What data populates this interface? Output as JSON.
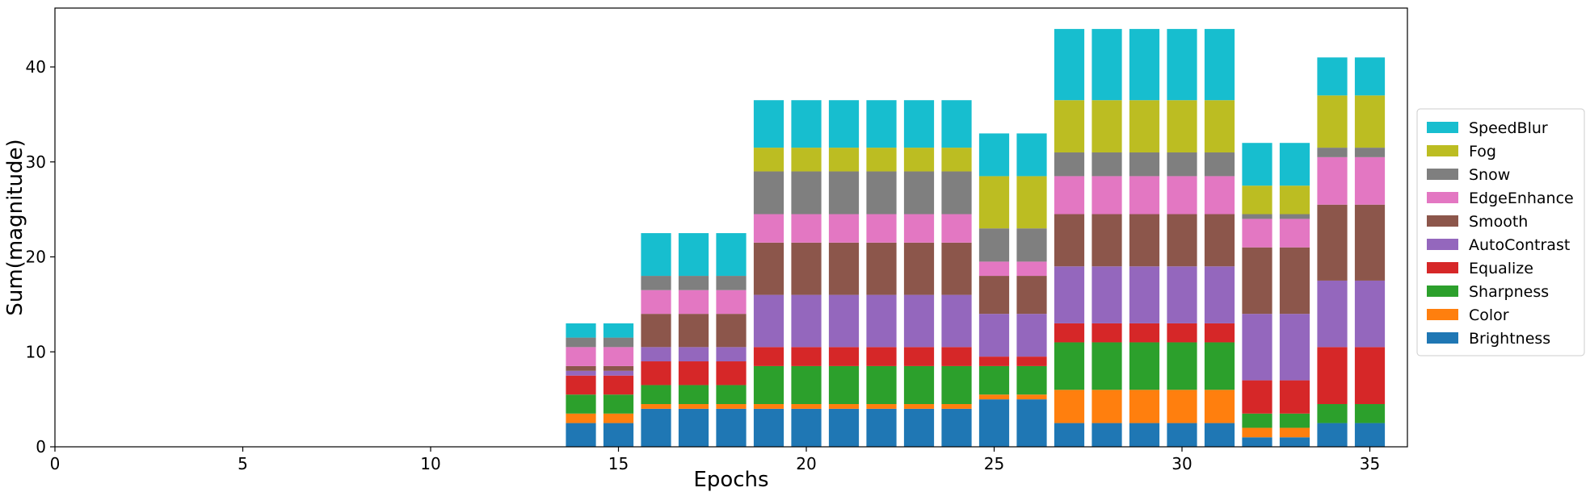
{
  "chart_data": {
    "type": "bar",
    "stacked": true,
    "xlabel": "Epochs",
    "ylabel": "Sum(magnitude)",
    "xlim": [
      0,
      36
    ],
    "ylim": [
      0,
      46.2
    ],
    "xticks": [
      0,
      5,
      10,
      15,
      20,
      25,
      30,
      35
    ],
    "yticks": [
      0,
      10,
      20,
      30,
      40
    ],
    "grid": false,
    "legend_position": "center-right-outside",
    "x": [
      14,
      15,
      16,
      17,
      18,
      19,
      20,
      21,
      22,
      23,
      24,
      25,
      26,
      27,
      28,
      29,
      30,
      31,
      32,
      33,
      34,
      35
    ],
    "series": [
      {
        "name": "Brightness",
        "color": "#1f77b4",
        "values": [
          2.5,
          2.5,
          4,
          4,
          4,
          4,
          4,
          4,
          4,
          4,
          4,
          5,
          5,
          2.5,
          2.5,
          2.5,
          2.5,
          2.5,
          1,
          1,
          2.5,
          2.5
        ]
      },
      {
        "name": "Color",
        "color": "#ff7f0e",
        "values": [
          1,
          1,
          0.5,
          0.5,
          0.5,
          0.5,
          0.5,
          0.5,
          0.5,
          0.5,
          0.5,
          0.5,
          0.5,
          3.5,
          3.5,
          3.5,
          3.5,
          3.5,
          1,
          1,
          0,
          0
        ]
      },
      {
        "name": "Sharpness",
        "color": "#2ca02c",
        "values": [
          2,
          2,
          2,
          2,
          2,
          4,
          4,
          4,
          4,
          4,
          4,
          3,
          3,
          5,
          5,
          5,
          5,
          5,
          1.5,
          1.5,
          2,
          2
        ]
      },
      {
        "name": "Equalize",
        "color": "#d62728",
        "values": [
          2,
          2,
          2.5,
          2.5,
          2.5,
          2,
          2,
          2,
          2,
          2,
          2,
          1,
          1,
          2,
          2,
          2,
          2,
          2,
          3.5,
          3.5,
          6,
          6
        ]
      },
      {
        "name": "AutoContrast",
        "color": "#9467bd",
        "values": [
          0.5,
          0.5,
          1.5,
          1.5,
          1.5,
          5.5,
          5.5,
          5.5,
          5.5,
          5.5,
          5.5,
          4.5,
          4.5,
          6,
          6,
          6,
          6,
          6,
          7,
          7,
          7,
          7
        ]
      },
      {
        "name": "Smooth",
        "color": "#8c564b",
        "values": [
          0.5,
          0.5,
          3.5,
          3.5,
          3.5,
          5.5,
          5.5,
          5.5,
          5.5,
          5.5,
          5.5,
          4,
          4,
          5.5,
          5.5,
          5.5,
          5.5,
          5.5,
          7,
          7,
          8,
          8
        ]
      },
      {
        "name": "EdgeEnhance",
        "color": "#e377c2",
        "values": [
          2,
          2,
          2.5,
          2.5,
          2.5,
          3,
          3,
          3,
          3,
          3,
          3,
          1.5,
          1.5,
          4,
          4,
          4,
          4,
          4,
          3,
          3,
          5,
          5
        ]
      },
      {
        "name": "Snow",
        "color": "#7f7f7f",
        "values": [
          1,
          1,
          1.5,
          1.5,
          1.5,
          4.5,
          4.5,
          4.5,
          4.5,
          4.5,
          4.5,
          3.5,
          3.5,
          2.5,
          2.5,
          2.5,
          2.5,
          2.5,
          0.5,
          0.5,
          1,
          1
        ]
      },
      {
        "name": "Fog",
        "color": "#bcbd22",
        "values": [
          0,
          0,
          0,
          0,
          0,
          2.5,
          2.5,
          2.5,
          2.5,
          2.5,
          2.5,
          5.5,
          5.5,
          5.5,
          5.5,
          5.5,
          5.5,
          5.5,
          3,
          3,
          5.5,
          5.5
        ]
      },
      {
        "name": "SpeedBlur",
        "color": "#17becf",
        "values": [
          1.5,
          1.5,
          4.5,
          4.5,
          4.5,
          5,
          5,
          5,
          5,
          5,
          5,
          4.5,
          4.5,
          7.5,
          7.5,
          7.5,
          7.5,
          7.5,
          4.5,
          4.5,
          4,
          4
        ]
      }
    ]
  }
}
